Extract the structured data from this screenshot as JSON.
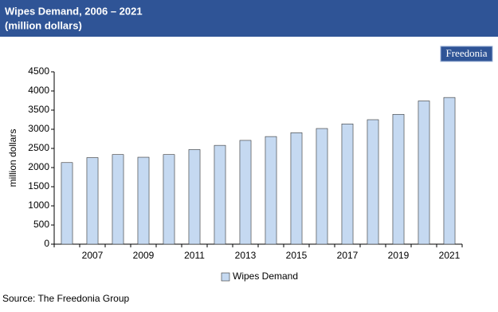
{
  "chart_data": {
    "type": "bar",
    "title": "Wipes Demand, 2006 – 2021",
    "subtitle": "(million dollars)",
    "logo": "Freedonia",
    "y_label": "million dollars",
    "source": "Source: The Freedonia Group",
    "categories": [
      null,
      "2007",
      null,
      "2009",
      null,
      "2011",
      null,
      "2013",
      null,
      "2015",
      null,
      "2017",
      null,
      "2019",
      null,
      "2021"
    ],
    "series": [
      {
        "name": "Wipes Demand",
        "color": "#c5d9f1",
        "values": [
          2130,
          2260,
          2340,
          2270,
          2340,
          2470,
          2580,
          2710,
          2810,
          2910,
          3020,
          3140,
          3250,
          3390,
          3740,
          3830
        ]
      }
    ],
    "ylim": [
      0,
      4500
    ],
    "yticks": [
      0,
      500,
      1000,
      1500,
      2000,
      2500,
      3000,
      3500,
      4000,
      4500
    ],
    "grid": false,
    "legend": "bottom"
  }
}
